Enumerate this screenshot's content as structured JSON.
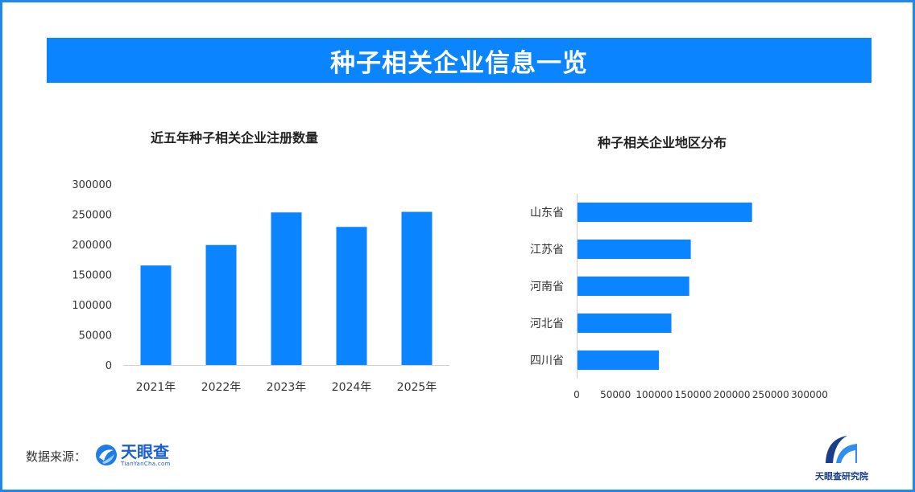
{
  "banner": {
    "title": "种子相关企业信息一览"
  },
  "colors": {
    "bar": "#0a84ff",
    "banner": "#0a84ff",
    "frame": "#1e88f0"
  },
  "footer": {
    "source_label": "数据来源：",
    "logo_name": "天眼查",
    "logo_sub": "TianYanCha.com",
    "institute": "天眼查研究院"
  },
  "chart_data": [
    {
      "type": "bar",
      "title": "近五年种子相关企业注册数量",
      "categories": [
        "2021年",
        "2022年",
        "2023年",
        "2024年",
        "2025年"
      ],
      "values": [
        165000,
        199000,
        253000,
        229000,
        254000
      ],
      "ylim": [
        0,
        300000
      ],
      "yticks": [
        "300000",
        "250000",
        "200000",
        "150000",
        "100000",
        "50000",
        "0"
      ],
      "xlabel": "",
      "ylabel": "",
      "grid": false
    },
    {
      "type": "bar",
      "orientation": "horizontal",
      "title": "种子相关企业地区分布",
      "categories": [
        "山东省",
        "江苏省",
        "河南省",
        "河北省",
        "四川省"
      ],
      "values": [
        226000,
        147000,
        145000,
        122000,
        106000
      ],
      "xlim": [
        0,
        300000
      ],
      "xticks": [
        "0",
        "50000",
        "100000",
        "150000",
        "200000",
        "250000",
        "300000"
      ],
      "xlabel": "",
      "ylabel": "",
      "grid": false
    }
  ]
}
